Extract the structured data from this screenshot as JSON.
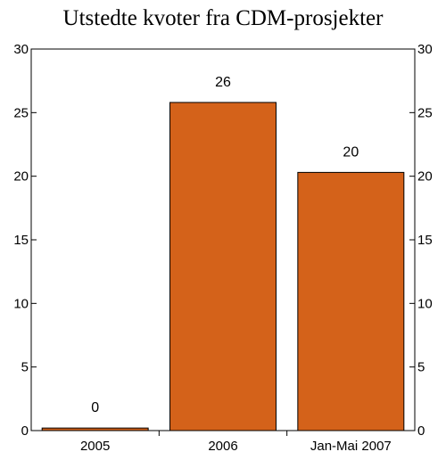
{
  "chart_data": {
    "type": "bar",
    "title": "Utstedte kvoter fra CDM-prosjekter",
    "categories": [
      "2005",
      "2006",
      "Jan-Mai 2007"
    ],
    "values": [
      0.2,
      25.8,
      20.3
    ],
    "data_labels": [
      "0",
      "26",
      "20"
    ],
    "ylim": [
      0,
      30
    ],
    "yticks": [
      0,
      5,
      10,
      15,
      20,
      25,
      30
    ],
    "ytick_labels": [
      "0",
      "5",
      "10",
      "15",
      "20",
      "25",
      "30"
    ],
    "secondary_axis": true,
    "grid": false,
    "legend": "none",
    "bar_color": "#d4621a",
    "bar_edge_color": "#000000"
  }
}
